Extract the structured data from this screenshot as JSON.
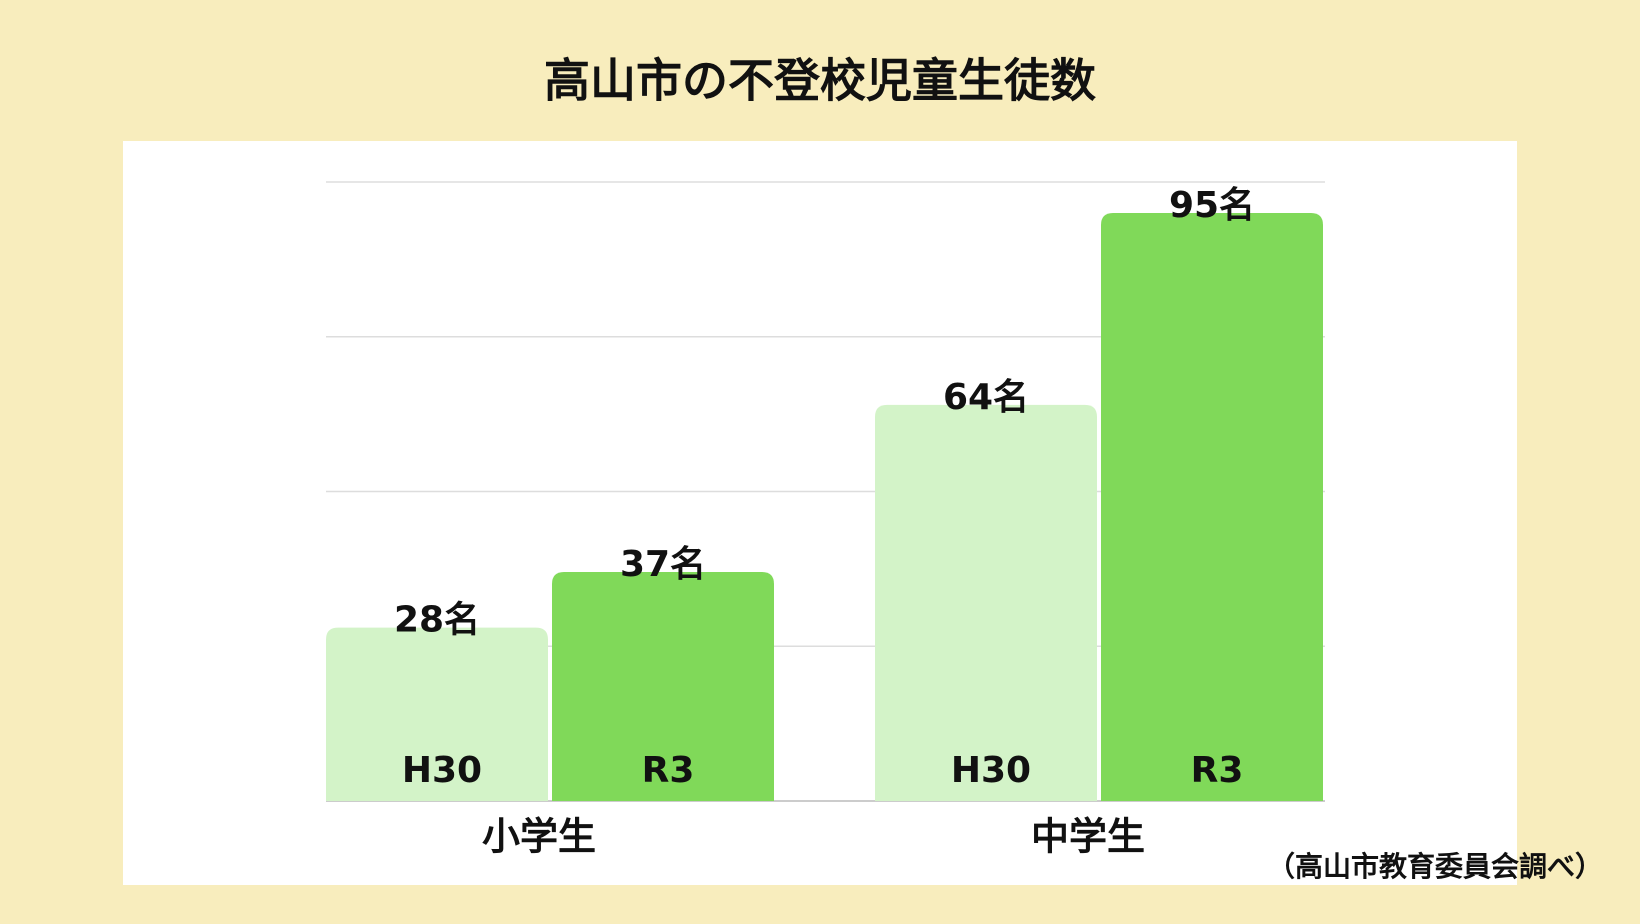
{
  "chart_data": {
    "type": "bar",
    "title": "高山市の不登校児童生徒数",
    "categories": [
      "小学生",
      "中学生"
    ],
    "series": [
      {
        "name": "H30",
        "color": "#d3f3c8",
        "values": [
          28,
          64
        ],
        "value_labels": [
          "28名",
          "64名"
        ]
      },
      {
        "name": "R3",
        "color": "#80d959",
        "values": [
          37,
          95
        ],
        "value_labels": [
          "37名",
          "95名"
        ]
      }
    ],
    "ylim": [
      0,
      100
    ],
    "yticks": [
      0,
      25,
      50,
      75,
      100
    ],
    "grid": true,
    "source": "（高山市教育委員会調べ）"
  }
}
